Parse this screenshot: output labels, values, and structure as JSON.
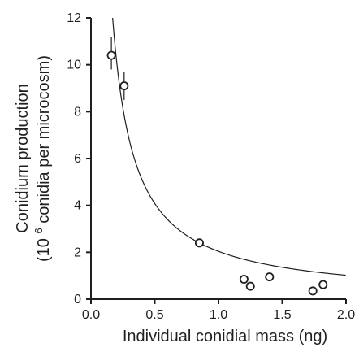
{
  "chart_data": {
    "type": "scatter",
    "xlabel": "Individual conidial mass (ng)",
    "ylabel_line1": "Conidium production",
    "ylabel_line2_prefix": "(10",
    "ylabel_line2_sup": "6",
    "ylabel_line2_suffix": " conidia per microcosm)",
    "xlim": [
      0,
      2
    ],
    "ylim": [
      0,
      12
    ],
    "xticks": [
      0.0,
      0.5,
      1.0,
      1.5,
      2.0
    ],
    "xtick_labels": [
      "0.0",
      "0.5",
      "1.0",
      "1.5",
      "2.0"
    ],
    "yticks": [
      0,
      2,
      4,
      6,
      8,
      10,
      12
    ],
    "ytick_labels": [
      "0",
      "2",
      "4",
      "6",
      "8",
      "10",
      "12"
    ],
    "series": [
      {
        "points": [
          {
            "x": 0.16,
            "y": 10.4,
            "err_low": 9.8,
            "err_high": 11.2
          },
          {
            "x": 0.26,
            "y": 9.1,
            "err_low": 8.5,
            "err_high": 9.7
          },
          {
            "x": 0.85,
            "y": 2.4
          },
          {
            "x": 1.2,
            "y": 0.85
          },
          {
            "x": 1.25,
            "y": 0.55
          },
          {
            "x": 1.4,
            "y": 0.95
          },
          {
            "x": 1.74,
            "y": 0.35
          },
          {
            "x": 1.82,
            "y": 0.62
          }
        ]
      }
    ],
    "fit_curve": {
      "type": "reciprocal",
      "equation_coefficient": 2.04
    },
    "grid": false,
    "colors": {
      "ink": "#1f1f1f",
      "background": "#ffffff"
    }
  }
}
